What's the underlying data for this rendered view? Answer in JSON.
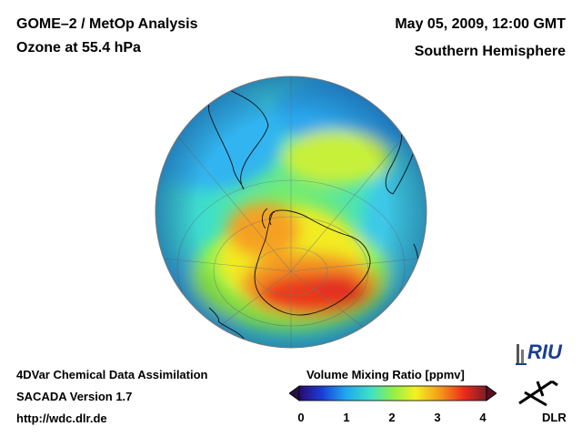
{
  "header": {
    "title_line1": "GOME–2 / MetOp Analysis",
    "title_line2": "Ozone at 55.4 hPa",
    "date": "May 05, 2009, 12:00 GMT",
    "hemisphere": "Southern Hemisphere"
  },
  "footer": {
    "line1": "4DVar Chemical Data Assimilation",
    "line2": "SACADA Version 1.7",
    "line3": "http://wdc.dlr.de"
  },
  "colorbar": {
    "title": "Volume Mixing Ratio [ppmv]",
    "ticks": [
      "0",
      "1",
      "2",
      "3",
      "4"
    ],
    "range": [
      0,
      4
    ],
    "colors": [
      "#2a0a6e",
      "#1a3cd6",
      "#20a8f0",
      "#3fe0c8",
      "#8ff04a",
      "#f4f21e",
      "#f59a1c",
      "#ec2b1a",
      "#7a1d28"
    ]
  },
  "logos": {
    "riu": "RIU",
    "dlr": "DLR"
  },
  "map": {
    "projection": "orthographic, south pole centered",
    "field": "ozone volume mixing ratio"
  }
}
